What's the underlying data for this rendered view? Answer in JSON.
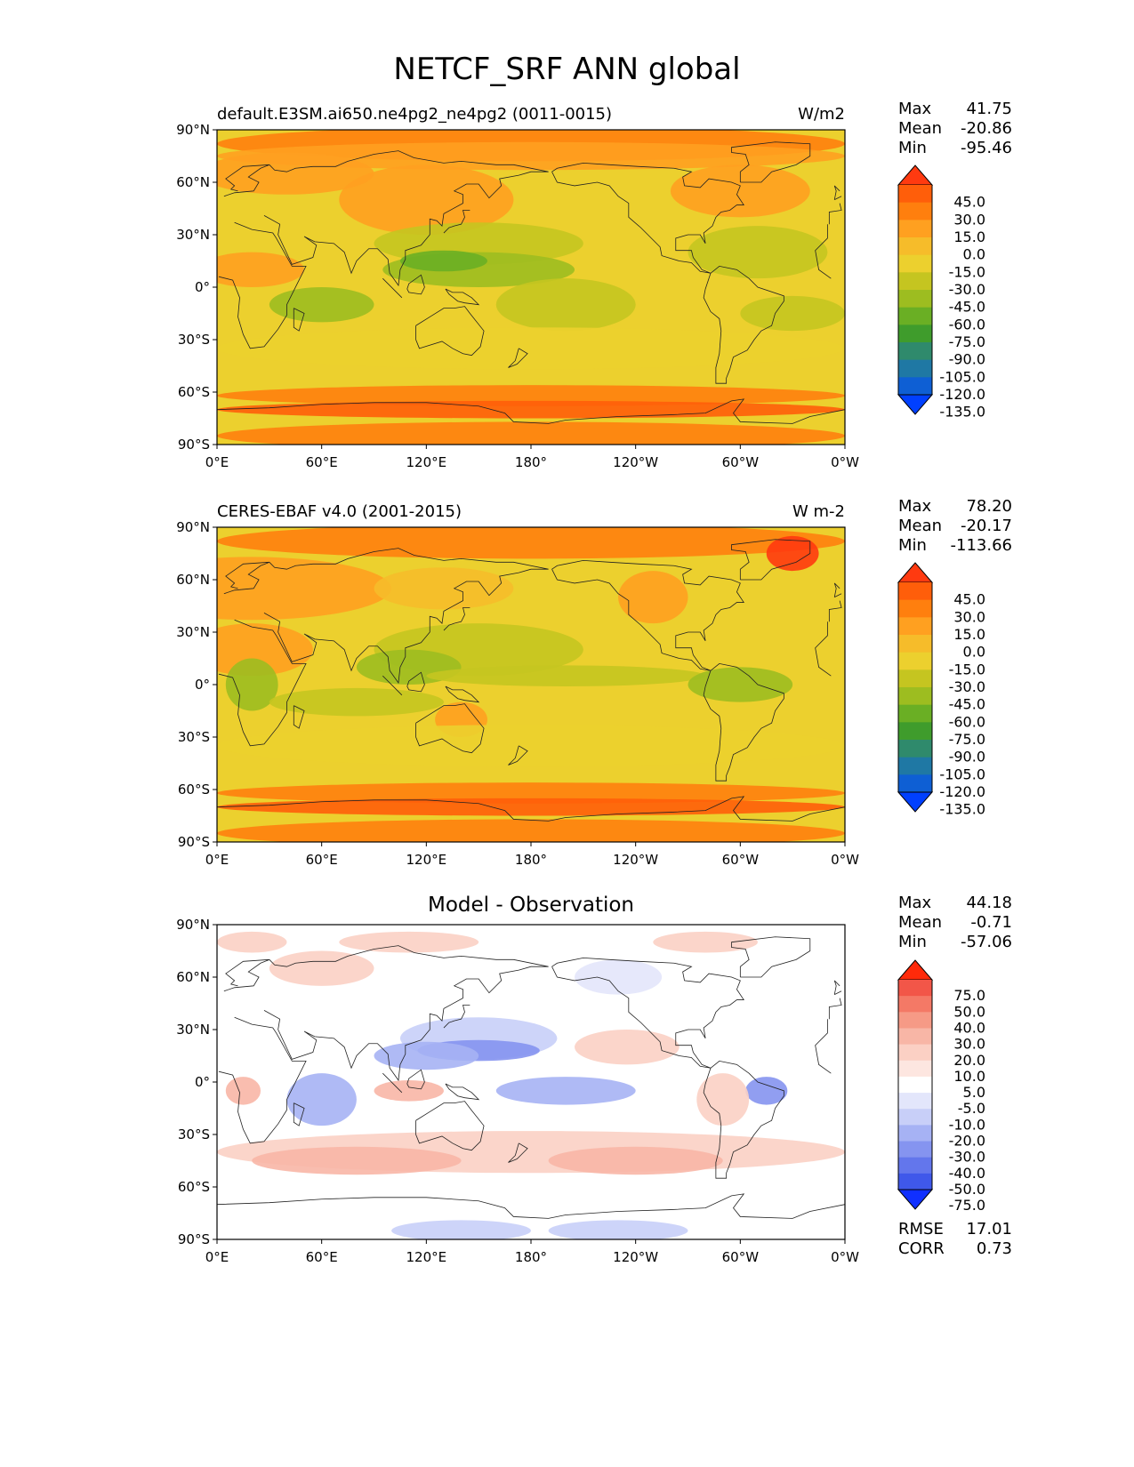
{
  "main_title": "NETCF_SRF ANN global",
  "axes": {
    "lat_ticks": [
      "90°N",
      "60°N",
      "30°N",
      "0°",
      "30°S",
      "60°S",
      "90°S"
    ],
    "lon_ticks": [
      "0°E",
      "60°E",
      "120°E",
      "180°",
      "120°W",
      "60°W",
      "0°W"
    ]
  },
  "panels": [
    {
      "title": "default.E3SM.ai650.ne4pg2_ne4pg2 (0011-0015)",
      "units": "W/m2",
      "stats": {
        "max_label": "Max",
        "max": "41.75",
        "mean_label": "Mean",
        "mean": "-20.86",
        "min_label": "Min",
        "min": "-95.46"
      }
    },
    {
      "title": "CERES-EBAF v4.0 (2001-2015)",
      "units": "W m-2",
      "stats": {
        "max_label": "Max",
        "max": "78.20",
        "mean_label": "Mean",
        "mean": "-20.17",
        "min_label": "Min",
        "min": "-113.66"
      }
    },
    {
      "title": "Model - Observation",
      "units": "",
      "stats": {
        "max_label": "Max",
        "max": "44.18",
        "mean_label": "Mean",
        "mean": "-0.71",
        "min_label": "Min",
        "min": "-57.06"
      },
      "metrics": {
        "rmse_label": "RMSE",
        "rmse": "17.01",
        "corr_label": "CORR",
        "corr": "0.73"
      }
    }
  ],
  "colorbars": {
    "main": {
      "labels": [
        "45.0",
        "30.0",
        "15.0",
        "0.0",
        "-15.0",
        "-30.0",
        "-45.0",
        "-60.0",
        "-75.0",
        "-90.0",
        "-105.0",
        "-120.0",
        "-135.0"
      ],
      "colors": [
        "#ff3a10",
        "#ff5e0a",
        "#ff7f0e",
        "#ffa020",
        "#f6bc2a",
        "#ecd02e",
        "#c5c520",
        "#9dbd20",
        "#6aaf24",
        "#3f9c2c",
        "#2f8a6c",
        "#1f78a4",
        "#0e5fd4",
        "#0040ff"
      ]
    },
    "diff": {
      "labels": [
        "75.0",
        "50.0",
        "40.0",
        "30.0",
        "20.0",
        "10.0",
        "5.0",
        "-5.0",
        "-10.0",
        "-20.0",
        "-30.0",
        "-40.0",
        "-50.0",
        "-75.0"
      ],
      "colors": [
        "#ff2a0a",
        "#f25648",
        "#f47966",
        "#f69a86",
        "#f8b6a6",
        "#fbd0c4",
        "#fde6e0",
        "#ffffff",
        "#e3e6fb",
        "#c8cff8",
        "#a6b2f4",
        "#8594f0",
        "#6376ec",
        "#3f58ea",
        "#1030ff"
      ]
    }
  },
  "chart_data": [
    {
      "type": "heatmap",
      "title": "default.E3SM.ai650.ne4pg2_ne4pg2 (0011-0015)",
      "units": "W/m2",
      "x_ticks": [
        "0°E",
        "60°E",
        "120°E",
        "180°",
        "120°W",
        "60°W",
        "0°W"
      ],
      "y_ticks": [
        "90°N",
        "60°N",
        "30°N",
        "0°",
        "30°S",
        "60°S",
        "90°S"
      ],
      "xlim": [
        0,
        360
      ],
      "ylim": [
        -90,
        90
      ],
      "stats": {
        "max": 41.75,
        "mean": -20.86,
        "min": -95.46
      },
      "levels": [
        -135,
        -120,
        -105,
        -90,
        -75,
        -60,
        -45,
        -30,
        -15,
        0,
        15,
        30,
        45
      ]
    },
    {
      "type": "heatmap",
      "title": "CERES-EBAF v4.0 (2001-2015)",
      "units": "W m-2",
      "x_ticks": [
        "0°E",
        "60°E",
        "120°E",
        "180°",
        "120°W",
        "60°W",
        "0°W"
      ],
      "y_ticks": [
        "90°N",
        "60°N",
        "30°N",
        "0°",
        "30°S",
        "60°S",
        "90°S"
      ],
      "xlim": [
        0,
        360
      ],
      "ylim": [
        -90,
        90
      ],
      "stats": {
        "max": 78.2,
        "mean": -20.17,
        "min": -113.66
      },
      "levels": [
        -135,
        -120,
        -105,
        -90,
        -75,
        -60,
        -45,
        -30,
        -15,
        0,
        15,
        30,
        45
      ]
    },
    {
      "type": "heatmap",
      "title": "Model - Observation",
      "x_ticks": [
        "0°E",
        "60°E",
        "120°E",
        "180°",
        "120°W",
        "60°W",
        "0°W"
      ],
      "y_ticks": [
        "90°N",
        "60°N",
        "30°N",
        "0°",
        "30°S",
        "60°S",
        "90°S"
      ],
      "xlim": [
        0,
        360
      ],
      "ylim": [
        -90,
        90
      ],
      "stats": {
        "max": 44.18,
        "mean": -0.71,
        "min": -57.06
      },
      "rmse": 17.01,
      "corr": 0.73,
      "levels": [
        -75,
        -50,
        -40,
        -30,
        -20,
        -10,
        -5,
        5,
        10,
        20,
        30,
        40,
        50,
        75
      ]
    }
  ]
}
